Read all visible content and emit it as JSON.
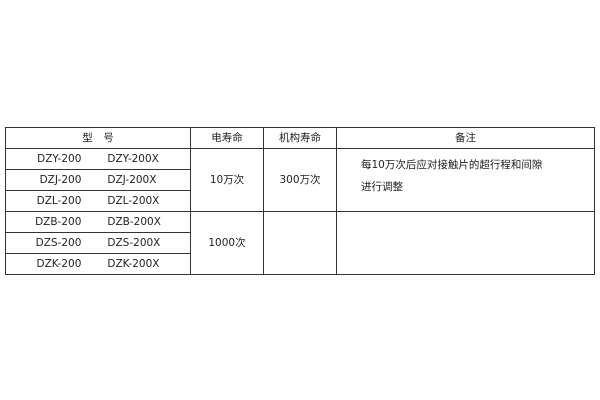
{
  "table": {
    "headers": [
      "型　号",
      "电寿命",
      "机构寿命",
      "备注"
    ],
    "rows": [
      [
        "DZY-200",
        "DZY-200X"
      ],
      [
        "DZJ-200",
        "DZJ-200X"
      ],
      [
        "DZL-200",
        "DZL-200X"
      ],
      [
        "DZB-200",
        "DZB-200X"
      ],
      [
        "DZS-200",
        "DZS-200X"
      ],
      [
        "DZK-200",
        "DZK-200X"
      ]
    ],
    "groups": [
      {
        "electrical_life": "10万次",
        "mechanical_life": "300万次",
        "note_lines": [
          "每10万次后应对接触片的超行程和间隙",
          "进行调整"
        ]
      },
      {
        "electrical_life": "1000次",
        "mechanical_life": "",
        "note_lines": []
      }
    ]
  }
}
